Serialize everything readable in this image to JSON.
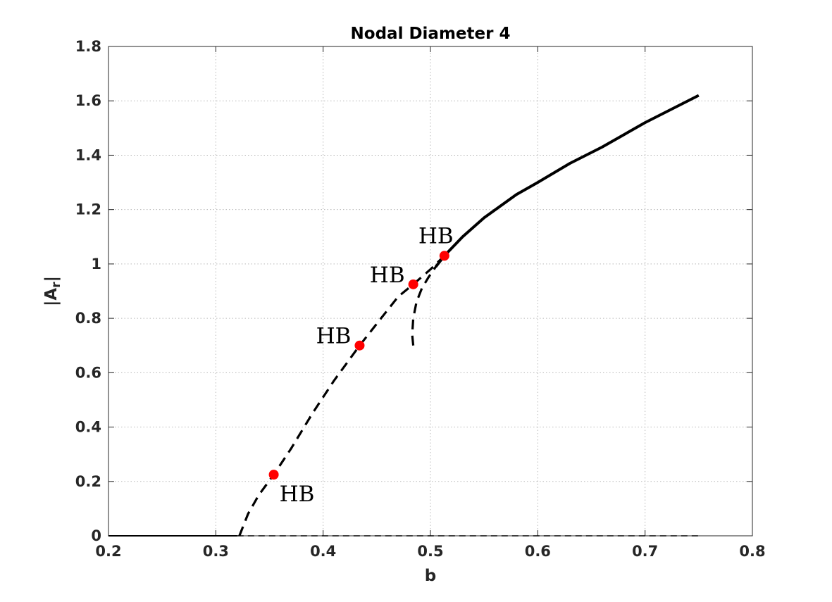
{
  "chart_data": {
    "type": "line",
    "title": "Nodal Diameter 4",
    "xlabel": "b",
    "ylabel_main": "|A",
    "ylabel_sub": "r",
    "ylabel_end": "|",
    "xlim": [
      0.2,
      0.8
    ],
    "ylim": [
      0,
      1.8
    ],
    "xticks": [
      0.2,
      0.3,
      0.4,
      0.5,
      0.6,
      0.7,
      0.8
    ],
    "xtick_labels": [
      "0.2",
      "0.3",
      "0.4",
      "0.5",
      "0.6",
      "0.7",
      "0.8"
    ],
    "yticks": [
      0,
      0.2,
      0.4,
      0.6,
      0.8,
      1.0,
      1.2,
      1.4,
      1.6,
      1.8
    ],
    "ytick_labels": [
      "0",
      "0.2",
      "0.4",
      "0.6",
      "0.8",
      "1",
      "1.2",
      "1.4",
      "1.6",
      "1.8"
    ],
    "grid": true,
    "line_color": "#000000",
    "marker_color": "#ff0000",
    "series": [
      {
        "style": "solid",
        "x": [
          0.2,
          0.32
        ],
        "y": [
          0,
          0
        ]
      },
      {
        "style": "dashed",
        "x": [
          0.32,
          0.75
        ],
        "y": [
          0,
          0
        ]
      },
      {
        "style": "dashed",
        "x": [
          0.322,
          0.33,
          0.34,
          0.354,
          0.37,
          0.39,
          0.41,
          0.434,
          0.45,
          0.47,
          0.484,
          0.5,
          0.513
        ],
        "y": [
          0,
          0.08,
          0.15,
          0.225,
          0.32,
          0.45,
          0.57,
          0.7,
          0.78,
          0.88,
          0.925,
          0.98,
          1.03
        ]
      },
      {
        "style": "dashed",
        "x": [
          0.484,
          0.483,
          0.484,
          0.487,
          0.492,
          0.498,
          0.505,
          0.513
        ],
        "y": [
          0.7,
          0.74,
          0.8,
          0.86,
          0.91,
          0.95,
          0.99,
          1.03
        ]
      },
      {
        "style": "solid",
        "x": [
          0.505,
          0.513,
          0.53,
          0.55,
          0.58,
          0.6,
          0.63,
          0.66,
          0.7,
          0.75
        ],
        "y": [
          0.99,
          1.03,
          1.1,
          1.17,
          1.255,
          1.3,
          1.37,
          1.43,
          1.52,
          1.62
        ]
      }
    ],
    "points": [
      {
        "x": 0.354,
        "y": 0.225,
        "label": "HB",
        "label_pos": "below-right"
      },
      {
        "x": 0.434,
        "y": 0.7,
        "label": "HB",
        "label_pos": "left"
      },
      {
        "x": 0.484,
        "y": 0.925,
        "label": "HB",
        "label_pos": "left"
      },
      {
        "x": 0.513,
        "y": 1.03,
        "label": "HB",
        "label_pos": "above"
      }
    ]
  }
}
